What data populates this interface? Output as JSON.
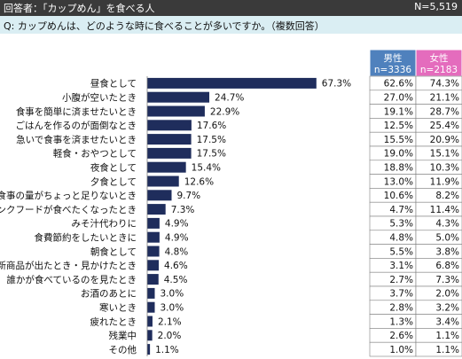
{
  "header": {
    "title": "回答者：「カップめん」を食べる人",
    "sample": "N=5,519"
  },
  "question": "Q:  カップめんは、どのような時に食べることが多いですか。（複数回答）",
  "table": {
    "male": {
      "label": "男性",
      "n": "n=3336",
      "color": "#4f81bd"
    },
    "female": {
      "label": "女性",
      "n": "n=2183",
      "color": "#e46cbd"
    }
  },
  "colors": {
    "bar": "#1f2d5c",
    "header_bg": "#3a3a3a",
    "question_bg": "#daeef3"
  },
  "chart_data": {
    "type": "bar",
    "orientation": "horizontal",
    "categories": [
      "昼食として",
      "小腹が空いたとき",
      "食事を簡単に済ませたいとき",
      "ごはんを作るのが面倒なとき",
      "急いで食事を済ませたいとき",
      "軽食・おやつとして",
      "夜食として",
      "夕食として",
      "食事の量がちょっと足りないとき",
      "ジャンクフードが食べたくなったとき",
      "みそ汁代わりに",
      "食費節約をしたいときに",
      "朝食として",
      "新商品が出たとき・見かけたとき",
      "誰かが食べているのを見たとき",
      "お酒のあとに",
      "寒いとき",
      "疲れたとき",
      "残業中",
      "その他"
    ],
    "values": [
      67.3,
      24.7,
      22.9,
      17.6,
      17.5,
      17.5,
      15.4,
      12.6,
      9.7,
      7.3,
      4.9,
      4.9,
      4.8,
      4.6,
      4.5,
      3.0,
      3.0,
      2.1,
      2.0,
      1.1
    ],
    "value_labels": [
      "67.3%",
      "24.7%",
      "22.9%",
      "17.6%",
      "17.5%",
      "17.5%",
      "15.4%",
      "12.6%",
      "9.7%",
      "7.3%",
      "4.9%",
      "4.9%",
      "4.8%",
      "4.6%",
      "4.5%",
      "3.0%",
      "3.0%",
      "2.1%",
      "2.0%",
      "1.1%"
    ],
    "male_labels": [
      "62.6%",
      "27.0%",
      "19.1%",
      "12.5%",
      "15.5%",
      "19.0%",
      "18.8%",
      "13.0%",
      "10.6%",
      "4.7%",
      "5.3%",
      "4.8%",
      "5.5%",
      "3.1%",
      "2.7%",
      "3.7%",
      "2.8%",
      "1.3%",
      "2.6%",
      "1.0%"
    ],
    "female_labels": [
      "74.3%",
      "21.1%",
      "28.7%",
      "25.4%",
      "20.9%",
      "15.1%",
      "10.3%",
      "11.9%",
      "8.2%",
      "11.4%",
      "4.3%",
      "5.0%",
      "3.8%",
      "6.8%",
      "7.3%",
      "2.0%",
      "3.2%",
      "3.4%",
      "1.1%",
      "1.1%"
    ],
    "xlim": [
      0,
      100
    ]
  }
}
